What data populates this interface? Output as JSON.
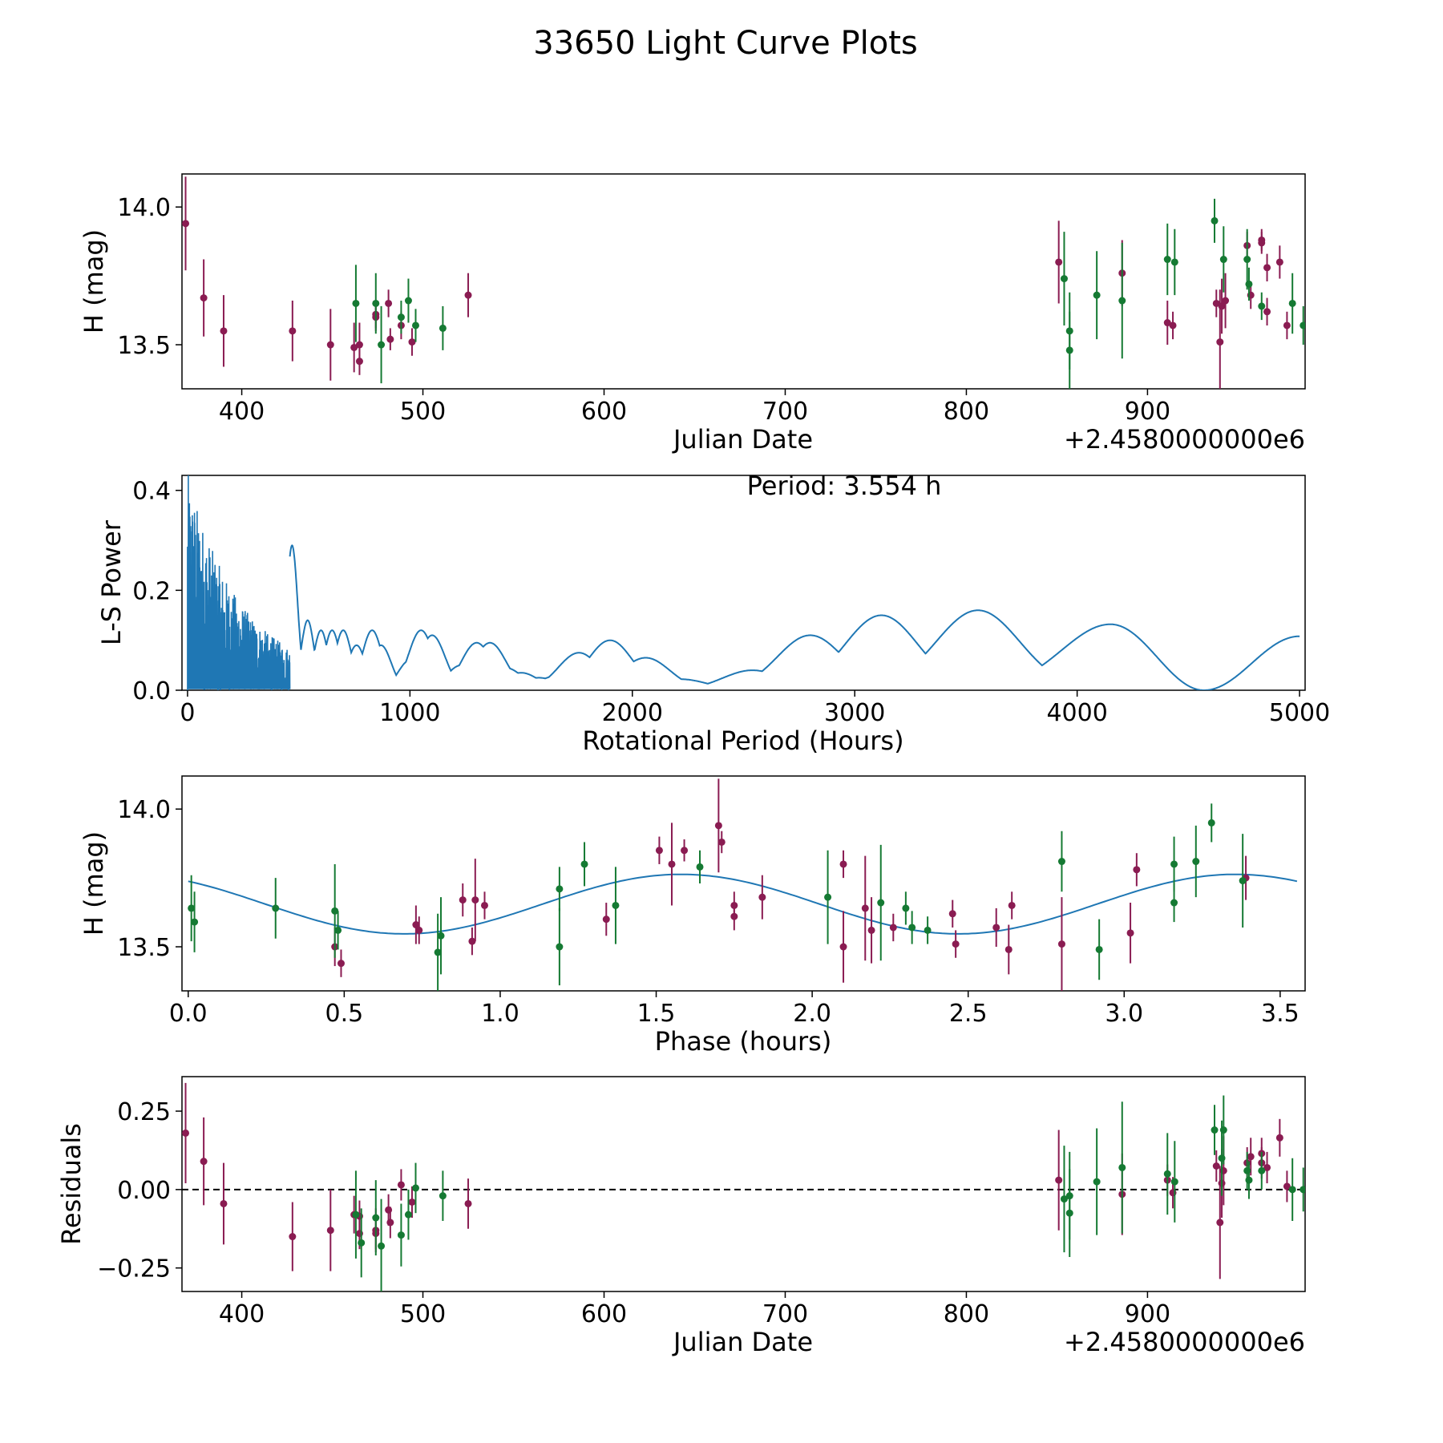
{
  "figure": {
    "title": "33650 Light Curve Plots",
    "colors": {
      "filter_r": "#8a1c52",
      "filter_g": "#157a33",
      "model": "#1f77b4",
      "periodogram": "#1f77b4",
      "zero_line": "#000000"
    }
  },
  "chart_data": [
    {
      "id": "lightcurve",
      "type": "scatter",
      "xlabel": "Julian Date",
      "ylabel": "H (mag)",
      "offset_label": "+2.4580000000e6",
      "xlim": [
        367,
        987
      ],
      "ylim": [
        13.34,
        14.12
      ],
      "xticks": [
        400,
        500,
        600,
        700,
        800,
        900
      ],
      "xtick_labels": [
        "400",
        "500",
        "600",
        "700",
        "800",
        "900"
      ],
      "yticks": [
        13.5,
        14.0
      ],
      "ytick_labels": [
        "13.5",
        "14.0"
      ],
      "series": [
        {
          "name": "r",
          "color_key": "filter_r",
          "points": [
            [
              369,
              13.94,
              0.17
            ],
            [
              379,
              13.67,
              0.14
            ],
            [
              390,
              13.55,
              0.13
            ],
            [
              428,
              13.55,
              0.11
            ],
            [
              449,
              13.5,
              0.13
            ],
            [
              462,
              13.49,
              0.09
            ],
            [
              465,
              13.5,
              0.08
            ],
            [
              465,
              13.44,
              0.05
            ],
            [
              474,
              13.6,
              0.05
            ],
            [
              474,
              13.61,
              0.05
            ],
            [
              481,
              13.65,
              0.05
            ],
            [
              482,
              13.52,
              0.04
            ],
            [
              488,
              13.57,
              0.05
            ],
            [
              494,
              13.51,
              0.05
            ],
            [
              525,
              13.68,
              0.08
            ],
            [
              851,
              13.8,
              0.15
            ],
            [
              886,
              13.76,
              0.12
            ],
            [
              911,
              13.58,
              0.08
            ],
            [
              914,
              13.57,
              0.05
            ],
            [
              938,
              13.65,
              0.05
            ],
            [
              940,
              13.51,
              0.19
            ],
            [
              941,
              13.64,
              0.1
            ],
            [
              943,
              13.66,
              0.1
            ],
            [
              955,
              13.86,
              0.05
            ],
            [
              957,
              13.68,
              0.05
            ],
            [
              963,
              13.87,
              0.04
            ],
            [
              963,
              13.88,
              0.04
            ],
            [
              966,
              13.78,
              0.05
            ],
            [
              966,
              13.62,
              0.05
            ],
            [
              973,
              13.8,
              0.06
            ],
            [
              977,
              13.57,
              0.05
            ]
          ]
        },
        {
          "name": "g",
          "color_key": "filter_g",
          "points": [
            [
              463,
              13.65,
              0.14
            ],
            [
              474,
              13.65,
              0.11
            ],
            [
              477,
              13.5,
              0.14
            ],
            [
              488,
              13.6,
              0.06
            ],
            [
              492,
              13.66,
              0.08
            ],
            [
              496,
              13.57,
              0.06
            ],
            [
              511,
              13.56,
              0.08
            ],
            [
              854,
              13.74,
              0.17
            ],
            [
              857,
              13.55,
              0.14
            ],
            [
              857,
              13.48,
              0.14
            ],
            [
              872,
              13.68,
              0.16
            ],
            [
              886,
              13.66,
              0.21
            ],
            [
              911,
              13.81,
              0.13
            ],
            [
              915,
              13.8,
              0.12
            ],
            [
              937,
              13.95,
              0.08
            ],
            [
              942,
              13.81,
              0.12
            ],
            [
              955,
              13.81,
              0.11
            ],
            [
              956,
              13.72,
              0.06
            ],
            [
              963,
              13.64,
              0.05
            ],
            [
              980,
              13.65,
              0.11
            ],
            [
              986,
              13.57,
              0.07
            ]
          ]
        }
      ]
    },
    {
      "id": "periodogram",
      "type": "line",
      "xlabel": "Rotational Period (Hours)",
      "ylabel": "L-S Power",
      "annotation": "Period: 3.554 h",
      "xlim": [
        -25,
        5025
      ],
      "ylim": [
        0,
        0.43
      ],
      "xticks": [
        0,
        1000,
        2000,
        3000,
        4000,
        5000
      ],
      "xtick_labels": [
        "0",
        "1000",
        "2000",
        "3000",
        "4000",
        "5000"
      ],
      "yticks": [
        0.0,
        0.2,
        0.4
      ],
      "ytick_labels": [
        "0.0",
        "0.2",
        "0.4"
      ],
      "color_key": "periodogram",
      "peaks": [
        [
          470,
          0.29
        ],
        [
          540,
          0.14
        ],
        [
          600,
          0.12
        ],
        [
          650,
          0.12
        ],
        [
          700,
          0.12
        ],
        [
          760,
          0.09
        ],
        [
          830,
          0.12
        ],
        [
          870,
          0.09
        ],
        [
          1000,
          0.06
        ],
        [
          1050,
          0.12
        ],
        [
          1100,
          0.11
        ],
        [
          1160,
          0.04
        ],
        [
          1230,
          0.05
        ],
        [
          1300,
          0.095
        ],
        [
          1360,
          0.095
        ],
        [
          1430,
          0.045
        ],
        [
          1500,
          0.035
        ],
        [
          1580,
          0.025
        ],
        [
          1670,
          0.03
        ],
        [
          1760,
          0.075
        ],
        [
          1900,
          0.1
        ],
        [
          2060,
          0.065
        ],
        [
          2220,
          0.022
        ],
        [
          2540,
          0.04
        ],
        [
          2800,
          0.11
        ],
        [
          3120,
          0.15
        ],
        [
          3554,
          0.16
        ],
        [
          4150,
          0.132
        ]
      ],
      "noise_region_hours": [
        0,
        460
      ],
      "noise_max_power": 0.43,
      "end_value": [
        5000,
        0.108
      ]
    },
    {
      "id": "phase",
      "type": "scatter",
      "xlabel": "Phase (hours)",
      "ylabel": "H (mag)",
      "xlim": [
        -0.02,
        3.58
      ],
      "ylim": [
        13.34,
        14.12
      ],
      "xticks": [
        0.0,
        0.5,
        1.0,
        1.5,
        2.0,
        2.5,
        3.0,
        3.5
      ],
      "xtick_labels": [
        "0.0",
        "0.5",
        "1.0",
        "1.5",
        "2.0",
        "2.5",
        "3.0",
        "3.5"
      ],
      "yticks": [
        13.5,
        14.0
      ],
      "ytick_labels": [
        "13.5",
        "14.0"
      ],
      "model": {
        "period": 1.777,
        "mean": 13.655,
        "amplitude": 0.108,
        "phase0": 1.58,
        "x_end": 3.554
      },
      "series": [
        {
          "name": "r",
          "color_key": "filter_r",
          "points": [
            [
              0.47,
              13.5,
              0.07
            ],
            [
              0.49,
              13.44,
              0.05
            ],
            [
              0.73,
              13.58,
              0.07
            ],
            [
              0.74,
              13.56,
              0.05
            ],
            [
              0.88,
              13.67,
              0.06
            ],
            [
              0.91,
              13.52,
              0.05
            ],
            [
              0.92,
              13.67,
              0.15
            ],
            [
              0.95,
              13.65,
              0.05
            ],
            [
              1.34,
              13.6,
              0.06
            ],
            [
              1.51,
              13.85,
              0.05
            ],
            [
              1.55,
              13.8,
              0.15
            ],
            [
              1.59,
              13.85,
              0.04
            ],
            [
              1.7,
              13.94,
              0.17
            ],
            [
              1.71,
              13.88,
              0.04
            ],
            [
              1.75,
              13.65,
              0.05
            ],
            [
              1.75,
              13.61,
              0.05
            ],
            [
              1.84,
              13.68,
              0.08
            ],
            [
              2.1,
              13.8,
              0.05
            ],
            [
              2.1,
              13.5,
              0.13
            ],
            [
              2.17,
              13.64,
              0.19
            ],
            [
              2.19,
              13.56,
              0.12
            ],
            [
              2.26,
              13.57,
              0.05
            ],
            [
              2.45,
              13.62,
              0.05
            ],
            [
              2.46,
              13.51,
              0.05
            ],
            [
              2.59,
              13.57,
              0.07
            ],
            [
              2.63,
              13.49,
              0.09
            ],
            [
              2.64,
              13.65,
              0.05
            ],
            [
              2.8,
              13.51,
              0.17
            ],
            [
              3.02,
              13.55,
              0.11
            ],
            [
              3.04,
              13.78,
              0.06
            ],
            [
              3.39,
              13.75,
              0.08
            ]
          ]
        },
        {
          "name": "g",
          "color_key": "filter_g",
          "points": [
            [
              0.01,
              13.64,
              0.12
            ],
            [
              0.02,
              13.59,
              0.11
            ],
            [
              0.28,
              13.64,
              0.11
            ],
            [
              0.47,
              13.63,
              0.17
            ],
            [
              0.48,
              13.56,
              0.07
            ],
            [
              0.8,
              13.48,
              0.14
            ],
            [
              0.81,
              13.54,
              0.14
            ],
            [
              1.19,
              13.71,
              0.08
            ],
            [
              1.19,
              13.5,
              0.14
            ],
            [
              1.27,
              13.8,
              0.08
            ],
            [
              1.37,
              13.65,
              0.14
            ],
            [
              1.64,
              13.79,
              0.06
            ],
            [
              2.05,
              13.68,
              0.17
            ],
            [
              2.22,
              13.66,
              0.21
            ],
            [
              2.3,
              13.64,
              0.06
            ],
            [
              2.32,
              13.57,
              0.06
            ],
            [
              2.37,
              13.56,
              0.05
            ],
            [
              2.8,
              13.81,
              0.11
            ],
            [
              2.92,
              13.49,
              0.11
            ],
            [
              3.16,
              13.8,
              0.1
            ],
            [
              3.16,
              13.66,
              0.07
            ],
            [
              3.23,
              13.81,
              0.13
            ],
            [
              3.28,
              13.95,
              0.07
            ],
            [
              3.38,
              13.74,
              0.17
            ]
          ]
        }
      ]
    },
    {
      "id": "residuals",
      "type": "scatter",
      "xlabel": "Julian Date",
      "ylabel": "Residuals",
      "offset_label": "+2.4580000000e6",
      "xlim": [
        367,
        987
      ],
      "ylim": [
        -0.325,
        0.36
      ],
      "xticks": [
        400,
        500,
        600,
        700,
        800,
        900
      ],
      "xtick_labels": [
        "400",
        "500",
        "600",
        "700",
        "800",
        "900"
      ],
      "yticks": [
        -0.25,
        0.0,
        0.25
      ],
      "ytick_labels": [
        "−0.25",
        "0.00",
        "0.25"
      ],
      "zero_line": 0.0,
      "series": [
        {
          "name": "r",
          "color_key": "filter_r",
          "points": [
            [
              369,
              0.18,
              0.16
            ],
            [
              379,
              0.09,
              0.14
            ],
            [
              390,
              -0.045,
              0.13
            ],
            [
              428,
              -0.15,
              0.11
            ],
            [
              449,
              -0.13,
              0.13
            ],
            [
              462,
              -0.08,
              0.06
            ],
            [
              465,
              -0.085,
              0.05
            ],
            [
              465,
              -0.14,
              0.05
            ],
            [
              474,
              -0.13,
              0.07
            ],
            [
              474,
              -0.14,
              0.05
            ],
            [
              481,
              -0.065,
              0.05
            ],
            [
              482,
              -0.105,
              0.05
            ],
            [
              488,
              0.015,
              0.05
            ],
            [
              494,
              -0.04,
              0.05
            ],
            [
              525,
              -0.045,
              0.08
            ],
            [
              851,
              0.03,
              0.16
            ],
            [
              886,
              -0.015,
              0.13
            ],
            [
              911,
              0.03,
              0.05
            ],
            [
              914,
              -0.01,
              0.05
            ],
            [
              938,
              0.075,
              0.05
            ],
            [
              940,
              -0.105,
              0.18
            ],
            [
              941,
              0.02,
              0.11
            ],
            [
              942,
              0.06,
              0.11
            ],
            [
              955,
              0.085,
              0.05
            ],
            [
              957,
              0.105,
              0.06
            ],
            [
              963,
              0.115,
              0.05
            ],
            [
              963,
              0.085,
              0.05
            ],
            [
              966,
              0.07,
              0.05
            ],
            [
              973,
              0.165,
              0.06
            ],
            [
              977,
              0.01,
              0.05
            ]
          ]
        },
        {
          "name": "g",
          "color_key": "filter_g",
          "points": [
            [
              463,
              -0.08,
              0.14
            ],
            [
              466,
              -0.17,
              0.11
            ],
            [
              474,
              -0.09,
              0.12
            ],
            [
              477,
              -0.18,
              0.15
            ],
            [
              488,
              -0.145,
              0.1
            ],
            [
              492,
              -0.08,
              0.08
            ],
            [
              496,
              0.005,
              0.08
            ],
            [
              511,
              -0.02,
              0.08
            ],
            [
              854,
              -0.03,
              0.17
            ],
            [
              857,
              -0.02,
              0.14
            ],
            [
              857,
              -0.075,
              0.14
            ],
            [
              872,
              0.025,
              0.17
            ],
            [
              886,
              0.07,
              0.21
            ],
            [
              911,
              0.05,
              0.13
            ],
            [
              915,
              0.025,
              0.13
            ],
            [
              937,
              0.19,
              0.08
            ],
            [
              941,
              0.1,
              0.12
            ],
            [
              942,
              0.19,
              0.11
            ],
            [
              955,
              0.06,
              0.06
            ],
            [
              956,
              0.03,
              0.06
            ],
            [
              963,
              0.06,
              0.06
            ],
            [
              980,
              0.0,
              0.1
            ],
            [
              986,
              0.0,
              0.07
            ]
          ]
        }
      ]
    }
  ]
}
